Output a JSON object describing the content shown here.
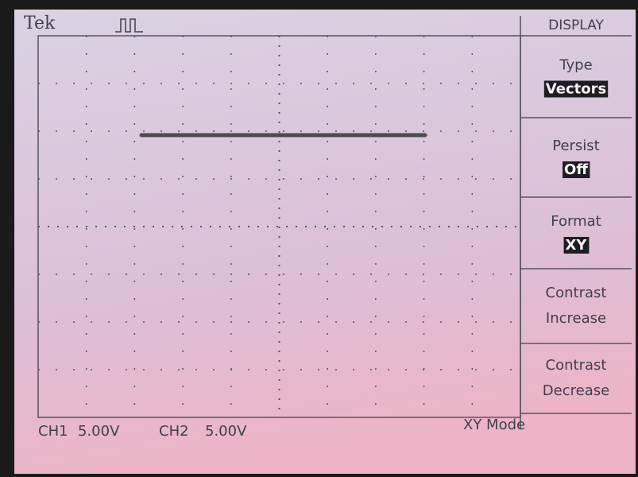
{
  "header": {
    "brand": "Tek",
    "menu_title": "DISPLAY"
  },
  "menu": [
    {
      "label": "Type",
      "value": "Vectors"
    },
    {
      "label": "Persist",
      "value": "Off"
    },
    {
      "label": "Format",
      "value": "XY"
    },
    {
      "lines": [
        "Contrast",
        "Increase"
      ]
    },
    {
      "lines": [
        "Contrast",
        "Decrease"
      ]
    }
  ],
  "status": {
    "ch1": "CH1",
    "ch1_scale": "5.00V",
    "ch2": "CH2",
    "ch2_scale": "5.00V",
    "mode": "XY Mode"
  }
}
